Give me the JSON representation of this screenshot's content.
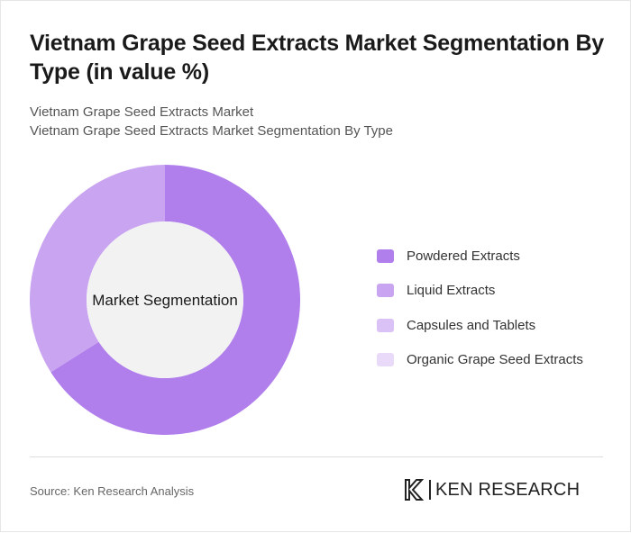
{
  "header": {
    "title": "Vietnam Grape Seed Extracts Market Segmentation By Type (in value %)",
    "subtitle_line1": "Vietnam Grape Seed Extracts Market",
    "subtitle_line2": "Vietnam Grape Seed Extracts Market Segmentation By Type"
  },
  "chart_data": {
    "type": "pie",
    "donut": true,
    "center_label": "Market Segmentation",
    "categories": [
      "Powdered Extracts",
      "Liquid Extracts",
      "Capsules and Tablets",
      "Organic Grape Seed Extracts"
    ],
    "values": [
      66,
      34,
      0,
      0
    ],
    "colors": [
      "#b07fec",
      "#c9a4f1",
      "#dbc2f6",
      "#e9daf9"
    ],
    "center_fill": "#f2f2f2",
    "legend_position": "right"
  },
  "footer": {
    "source": "Source: Ken Research Analysis",
    "brand": "KEN RESEARCH"
  }
}
